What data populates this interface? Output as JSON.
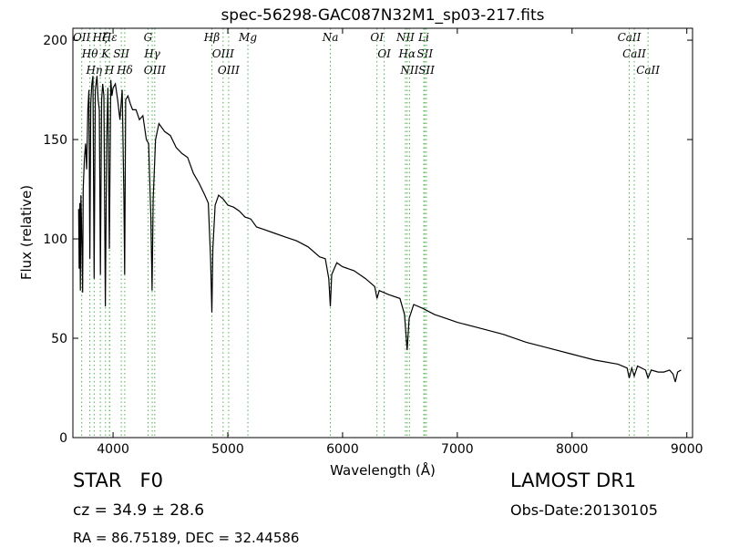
{
  "chart_data": {
    "type": "line",
    "title": "spec-56298-GAC087N32M1_sp03-217.fits",
    "xlabel": "Wavelength (Å)",
    "ylabel": "Flux (relative)",
    "x": [
      3700,
      3705,
      3710,
      3715,
      3720,
      3725,
      3735,
      3740,
      3750,
      3760,
      3770,
      3780,
      3790,
      3798,
      3806,
      3815,
      3825,
      3835,
      3845,
      3860,
      3870,
      3880,
      3890,
      3900,
      3910,
      3920,
      3933,
      3945,
      3955,
      3968,
      3980,
      3990,
      4000,
      4020,
      4040,
      4060,
      4080,
      4095,
      4101,
      4110,
      4130,
      4150,
      4170,
      4200,
      4230,
      4260,
      4290,
      4310,
      4330,
      4340,
      4350,
      4370,
      4400,
      4450,
      4500,
      4550,
      4600,
      4650,
      4700,
      4750,
      4800,
      4830,
      4850,
      4861,
      4870,
      4890,
      4920,
      4960,
      5000,
      5050,
      5100,
      5150,
      5200,
      5250,
      5300,
      5400,
      5500,
      5600,
      5700,
      5800,
      5850,
      5880,
      5893,
      5905,
      5950,
      6000,
      6100,
      6200,
      6280,
      6300,
      6320,
      6400,
      6500,
      6540,
      6563,
      6580,
      6620,
      6700,
      6800,
      6900,
      7000,
      7200,
      7400,
      7600,
      7800,
      8000,
      8200,
      8400,
      8480,
      8498,
      8520,
      8542,
      8570,
      8640,
      8662,
      8690,
      8750,
      8800,
      8850,
      8880,
      8900,
      8920,
      8950
    ],
    "values": [
      115,
      85,
      118,
      74,
      122,
      110,
      73,
      125,
      140,
      148,
      135,
      165,
      175,
      90,
      168,
      178,
      182,
      80,
      175,
      182,
      170,
      165,
      82,
      170,
      178,
      172,
      66,
      150,
      176,
      95,
      180,
      172,
      176,
      178,
      170,
      160,
      175,
      120,
      82,
      170,
      172,
      168,
      165,
      165,
      160,
      162,
      150,
      148,
      110,
      74,
      120,
      150,
      158,
      154,
      152,
      146,
      143,
      141,
      133,
      128,
      122,
      118,
      90,
      63,
      95,
      117,
      122,
      120,
      117,
      116,
      114,
      111,
      110,
      106,
      105,
      103,
      101,
      99,
      96,
      91,
      90,
      80,
      66,
      82,
      88,
      86,
      84,
      80,
      76,
      70,
      74,
      72,
      70,
      62,
      44,
      60,
      67,
      65,
      62,
      60,
      58,
      55,
      52,
      48,
      45,
      42,
      39,
      37,
      35,
      30,
      35,
      31,
      36,
      34,
      30,
      34,
      33,
      33,
      34,
      32,
      28,
      33,
      34
    ],
    "color": "#000000",
    "line_marker_color": "#4caf50",
    "lines": [
      {
        "label": "OII",
        "wavelength": 3727
      },
      {
        "label": "Hθ",
        "wavelength": 3798
      },
      {
        "label": "Hη",
        "wavelength": 3835
      },
      {
        "label": "Hζ",
        "wavelength": 3889
      },
      {
        "label": "K",
        "wavelength": 3934
      },
      {
        "label": "H",
        "wavelength": 3969
      },
      {
        "label": "Hε",
        "wavelength": 3970
      },
      {
        "label": "SII",
        "wavelength": 4072
      },
      {
        "label": "Hδ",
        "wavelength": 4102
      },
      {
        "label": "G",
        "wavelength": 4305
      },
      {
        "label": "Hγ",
        "wavelength": 4341
      },
      {
        "label": "OIII",
        "wavelength": 4363
      },
      {
        "label": "Hβ",
        "wavelength": 4861
      },
      {
        "label": "OIII",
        "wavelength": 4959
      },
      {
        "label": "OIII",
        "wavelength": 5007
      },
      {
        "label": "Mg",
        "wavelength": 5175
      },
      {
        "label": "Na",
        "wavelength": 5894
      },
      {
        "label": "OI",
        "wavelength": 6300
      },
      {
        "label": "OI",
        "wavelength": 6363
      },
      {
        "label": "NII",
        "wavelength": 6548
      },
      {
        "label": "Hα",
        "wavelength": 6563
      },
      {
        "label": "NII",
        "wavelength": 6583
      },
      {
        "label": "Li",
        "wavelength": 6708
      },
      {
        "label": "SII",
        "wavelength": 6717
      },
      {
        "label": "SII",
        "wavelength": 6731
      },
      {
        "label": "CaII",
        "wavelength": 8498
      },
      {
        "label": "CaII",
        "wavelength": 8542
      },
      {
        "label": "CaII",
        "wavelength": 8662
      }
    ],
    "xlim": [
      3650,
      9050
    ],
    "xticks": [
      4000,
      5000,
      6000,
      7000,
      8000,
      9000
    ],
    "ylim": [
      0,
      206
    ],
    "yticks": [
      0,
      50,
      100,
      150,
      200
    ],
    "object_class": "STAR   F0",
    "redshift": "cz = 34.9 ± 28.6",
    "coordinates": "RA = 86.75189, DEC = 32.44586",
    "survey": "LAMOST DR1",
    "obs_date": "Obs-Date:20130105"
  }
}
